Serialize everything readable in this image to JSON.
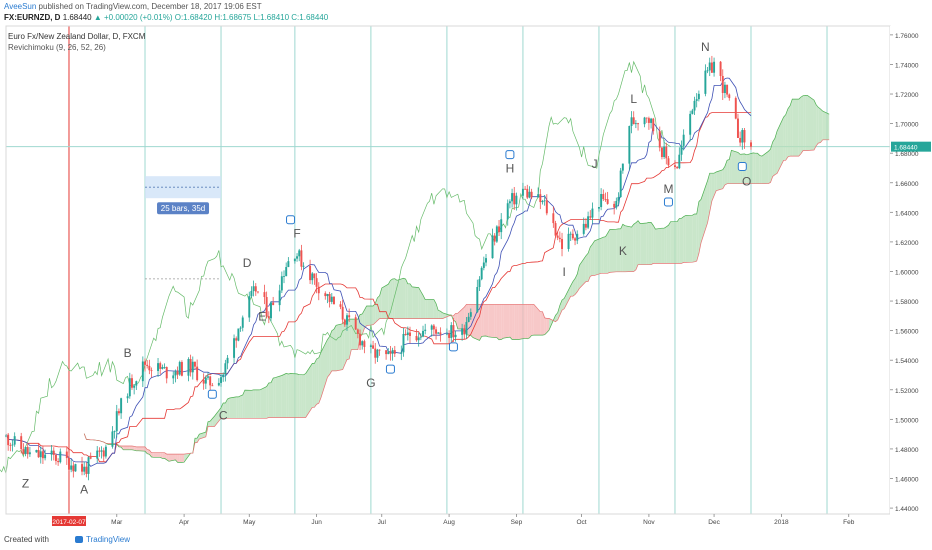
{
  "header": {
    "author": "AveeSun",
    "published": " published on TradingView.com, December 18, 2017 19:06 EST",
    "symbol": "FX:EURNZD, D",
    "last_price": "1.68440",
    "change": "+0.00020 (+0.01%)",
    "ohlc": "O:1.68420 H:1.68675 L:1.68410 C:1.68440"
  },
  "footer": {
    "created_with": "Created with",
    "brand": "TradingView"
  },
  "colors": {
    "up": "#26a69a",
    "down": "#ef5350",
    "conversion": "#3f51b5",
    "base": "#e53935",
    "lagging": "#66bb6a",
    "kumo_bull": "#b7ddb8",
    "kumo_bear": "#f4b6b6",
    "price_tag": "#26a69a",
    "date_tag": "#e53935",
    "measure": "#cfe2f8"
  },
  "chart_data": {
    "type": "candlestick",
    "title": "Euro Fx/New Zealand Dollar, D, FXCM",
    "indicator": "Revichimoku (9, 26, 52, 26)",
    "y_axis": {
      "side": "right",
      "range": [
        1.436,
        1.766
      ],
      "ticks": [
        "1.76000",
        "1.74000",
        "1.72000",
        "1.70000",
        "1.68000",
        "1.66000",
        "1.64000",
        "1.62000",
        "1.60000",
        "1.58000",
        "1.56000",
        "1.54000",
        "1.52000",
        "1.50000",
        "1.48000",
        "1.46000",
        "1.44000"
      ]
    },
    "x_axis": {
      "start_date": "2017-01-09",
      "end_date": "2018-02-20",
      "ticks": [
        {
          "date": "2017-03-01",
          "label": "Mar"
        },
        {
          "date": "2017-04-01",
          "label": "Apr"
        },
        {
          "date": "2017-05-01",
          "label": "May"
        },
        {
          "date": "2017-06-01",
          "label": "Jun"
        },
        {
          "date": "2017-07-01",
          "label": "Jul"
        },
        {
          "date": "2017-08-01",
          "label": "Aug"
        },
        {
          "date": "2017-09-01",
          "label": "Sep"
        },
        {
          "date": "2017-10-01",
          "label": "Oct"
        },
        {
          "date": "2017-11-01",
          "label": "Nov"
        },
        {
          "date": "2017-12-01",
          "label": "Dec"
        },
        {
          "date": "2018-01-01",
          "label": "2018"
        },
        {
          "date": "2018-02-01",
          "label": "Feb"
        }
      ]
    },
    "current_price": 1.6844,
    "current_price_label": "1.68440",
    "marked_date": "2017-02-07",
    "marked_date_label": "2017-02-07",
    "price_path": [
      {
        "date": "2017-01-09",
        "close": 1.488
      },
      {
        "date": "2017-01-20",
        "close": 1.476
      },
      {
        "date": "2017-02-03",
        "close": 1.474
      },
      {
        "date": "2017-02-14",
        "close": 1.466
      },
      {
        "date": "2017-02-24",
        "close": 1.481
      },
      {
        "date": "2017-03-06",
        "close": 1.521
      },
      {
        "date": "2017-03-14",
        "close": 1.538
      },
      {
        "date": "2017-03-24",
        "close": 1.532
      },
      {
        "date": "2017-04-04",
        "close": 1.536
      },
      {
        "date": "2017-04-12",
        "close": 1.524
      },
      {
        "date": "2017-04-19",
        "close": 1.531
      },
      {
        "date": "2017-04-27",
        "close": 1.567
      },
      {
        "date": "2017-05-04",
        "close": 1.588
      },
      {
        "date": "2017-05-10",
        "close": 1.572
      },
      {
        "date": "2017-05-18",
        "close": 1.605
      },
      {
        "date": "2017-05-22",
        "close": 1.614
      },
      {
        "date": "2017-05-31",
        "close": 1.594
      },
      {
        "date": "2017-06-12",
        "close": 1.572
      },
      {
        "date": "2017-06-26",
        "close": 1.545
      },
      {
        "date": "2017-07-05",
        "close": 1.541
      },
      {
        "date": "2017-07-14",
        "close": 1.558
      },
      {
        "date": "2017-07-26",
        "close": 1.561
      },
      {
        "date": "2017-08-07",
        "close": 1.558
      },
      {
        "date": "2017-08-17",
        "close": 1.606
      },
      {
        "date": "2017-08-28",
        "close": 1.645
      },
      {
        "date": "2017-09-04",
        "close": 1.655
      },
      {
        "date": "2017-09-14",
        "close": 1.645
      },
      {
        "date": "2017-09-22",
        "close": 1.618
      },
      {
        "date": "2017-10-03",
        "close": 1.632
      },
      {
        "date": "2017-10-09",
        "close": 1.648
      },
      {
        "date": "2017-10-17",
        "close": 1.645
      },
      {
        "date": "2017-10-23",
        "close": 1.7
      },
      {
        "date": "2017-10-31",
        "close": 1.707
      },
      {
        "date": "2017-11-09",
        "close": 1.676
      },
      {
        "date": "2017-11-14",
        "close": 1.672
      },
      {
        "date": "2017-11-22",
        "close": 1.718
      },
      {
        "date": "2017-12-01",
        "close": 1.741
      },
      {
        "date": "2017-12-06",
        "close": 1.722
      },
      {
        "date": "2017-12-12",
        "close": 1.694
      },
      {
        "date": "2017-12-18",
        "close": 1.684
      }
    ],
    "wave_labels": [
      {
        "text": "Z",
        "date": "2017-01-18",
        "price": 1.454
      },
      {
        "text": "A",
        "date": "2017-02-14",
        "price": 1.45
      },
      {
        "text": "B",
        "date": "2017-03-06",
        "price": 1.542
      },
      {
        "text": "C",
        "date": "2017-04-19",
        "price": 1.5
      },
      {
        "text": "D",
        "date": "2017-04-30",
        "price": 1.603
      },
      {
        "text": "E",
        "date": "2017-05-07",
        "price": 1.567
      },
      {
        "text": "F",
        "date": "2017-05-23",
        "price": 1.623
      },
      {
        "text": "G",
        "date": "2017-06-26",
        "price": 1.522
      },
      {
        "text": "H",
        "date": "2017-08-29",
        "price": 1.667
      },
      {
        "text": "I",
        "date": "2017-09-23",
        "price": 1.597
      },
      {
        "text": "J",
        "date": "2017-10-07",
        "price": 1.67
      },
      {
        "text": "K",
        "date": "2017-10-20",
        "price": 1.611
      },
      {
        "text": "L",
        "date": "2017-10-25",
        "price": 1.714
      },
      {
        "text": "M",
        "date": "2017-11-10",
        "price": 1.653
      },
      {
        "text": "N",
        "date": "2017-11-27",
        "price": 1.749
      },
      {
        "text": "O",
        "date": "2017-12-16",
        "price": 1.658
      }
    ],
    "measure_tool": {
      "label": "25 bars, 35d",
      "start_date": "2017-03-14",
      "end_date": "2017-04-18",
      "price": 1.657
    },
    "dashed_levels": [
      {
        "start_date": "2017-03-14",
        "end_date": "2017-04-18",
        "price": 1.595
      }
    ],
    "vertical_lines": [
      "2017-03-14",
      "2017-04-18",
      "2017-05-22",
      "2017-06-26",
      "2017-07-31",
      "2017-09-04",
      "2017-10-09",
      "2017-11-13",
      "2017-12-18",
      "2018-01-22"
    ],
    "thumbs_up": [
      {
        "date": "2017-04-14",
        "price": 1.517
      },
      {
        "date": "2017-05-20",
        "price": 1.635
      },
      {
        "date": "2017-07-05",
        "price": 1.534
      },
      {
        "date": "2017-08-03",
        "price": 1.549
      },
      {
        "date": "2017-08-29",
        "price": 1.679
      },
      {
        "date": "2017-11-10",
        "price": 1.647
      },
      {
        "date": "2017-12-14",
        "price": 1.671
      }
    ]
  }
}
